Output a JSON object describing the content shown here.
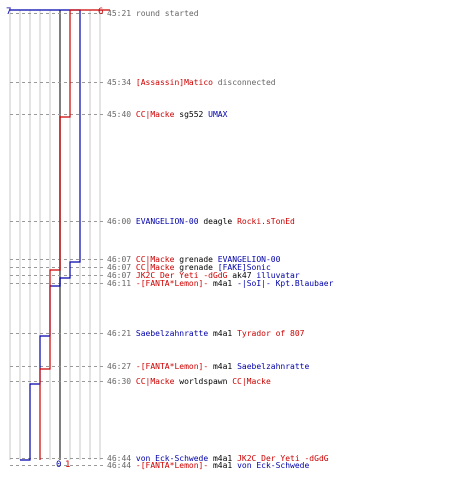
{
  "chart_data": {
    "type": "line",
    "title": "",
    "xlabel": "",
    "ylabel": "",
    "teams": [
      {
        "id": "blue",
        "color": "#0000aa"
      },
      {
        "id": "red",
        "color": "#cc0000"
      }
    ],
    "corner_labels": {
      "blue_start": "7",
      "red_start": "6",
      "blue_end": "0",
      "red_end": "1"
    },
    "series": [
      {
        "team": "blue",
        "values": [
          7,
          7,
          7,
          7,
          6,
          6,
          5,
          4,
          3,
          3,
          2,
          1,
          1,
          1,
          0,
          0
        ]
      },
      {
        "team": "red",
        "values": [
          6,
          6,
          5,
          5,
          5,
          4,
          4,
          4,
          4,
          3,
          3,
          3,
          2,
          2,
          2,
          1
        ]
      }
    ],
    "events": [
      {
        "time": "45:21",
        "parts": [
          {
            "t": "round started",
            "c": "grey"
          }
        ]
      },
      {
        "time": "45:34",
        "parts": [
          {
            "t": "[Assassin]Matico",
            "c": "red"
          },
          {
            "t": " disconnected",
            "c": "grey"
          }
        ]
      },
      {
        "time": "45:40",
        "parts": [
          {
            "t": "CC|Macke",
            "c": "red"
          },
          {
            "t": " sg552 ",
            "c": "black"
          },
          {
            "t": "UMAX",
            "c": "blue"
          }
        ]
      },
      {
        "time": "46:00",
        "parts": [
          {
            "t": "EVANGELION-00",
            "c": "blue"
          },
          {
            "t": " deagle ",
            "c": "black"
          },
          {
            "t": "Rocki.sTonEd",
            "c": "red"
          }
        ]
      },
      {
        "time": "46:07",
        "parts": [
          {
            "t": "CC|Macke",
            "c": "red"
          },
          {
            "t": " grenade ",
            "c": "black"
          },
          {
            "t": "EVANGELION-00",
            "c": "blue"
          }
        ]
      },
      {
        "time": "46:07",
        "parts": [
          {
            "t": "CC|Macke",
            "c": "red"
          },
          {
            "t": " grenade ",
            "c": "black"
          },
          {
            "t": "[FAKE]Sonic",
            "c": "blue"
          }
        ]
      },
      {
        "time": "46:07",
        "parts": [
          {
            "t": "JK2C Der Yeti -dGdG",
            "c": "red"
          },
          {
            "t": " ak47 ",
            "c": "black"
          },
          {
            "t": "illuvatar",
            "c": "blue"
          }
        ]
      },
      {
        "time": "46:11",
        "parts": [
          {
            "t": "-[FANTA*Lemon]-",
            "c": "red"
          },
          {
            "t": " m4a1 ",
            "c": "black"
          },
          {
            "t": "-|SoI|- Kpt.Blaubaer",
            "c": "blue"
          }
        ]
      },
      {
        "time": "46:21",
        "parts": [
          {
            "t": "Saebelzahnratte",
            "c": "blue"
          },
          {
            "t": " m4a1 ",
            "c": "black"
          },
          {
            "t": "Tyrador of 807",
            "c": "red"
          }
        ]
      },
      {
        "time": "46:27",
        "parts": [
          {
            "t": "-[FANTA*Lemon]-",
            "c": "red"
          },
          {
            "t": " m4a1 ",
            "c": "black"
          },
          {
            "t": "Saebelzahnratte",
            "c": "blue"
          }
        ]
      },
      {
        "time": "46:30",
        "parts": [
          {
            "t": "CC|Macke",
            "c": "red"
          },
          {
            "t": " worldspawn ",
            "c": "black"
          },
          {
            "t": "CC|Macke",
            "c": "red"
          }
        ]
      },
      {
        "time": "46:44",
        "parts": [
          {
            "t": "von Eck-Schwede",
            "c": "blue"
          },
          {
            "t": " m4a1 ",
            "c": "black"
          },
          {
            "t": "JK2C Der Yeti -dGdG",
            "c": "red"
          }
        ]
      },
      {
        "time": "46:44",
        "parts": [
          {
            "t": "-[FANTA*Lemon]-",
            "c": "red"
          },
          {
            "t": " m4a1 ",
            "c": "black"
          },
          {
            "t": "von Eck-Schwede",
            "c": "blue"
          }
        ]
      }
    ],
    "text_colors": {
      "red": "#cc0000",
      "blue": "#0000aa",
      "black": "#000000",
      "grey": "#666666"
    },
    "grid": true,
    "legend": "none"
  }
}
